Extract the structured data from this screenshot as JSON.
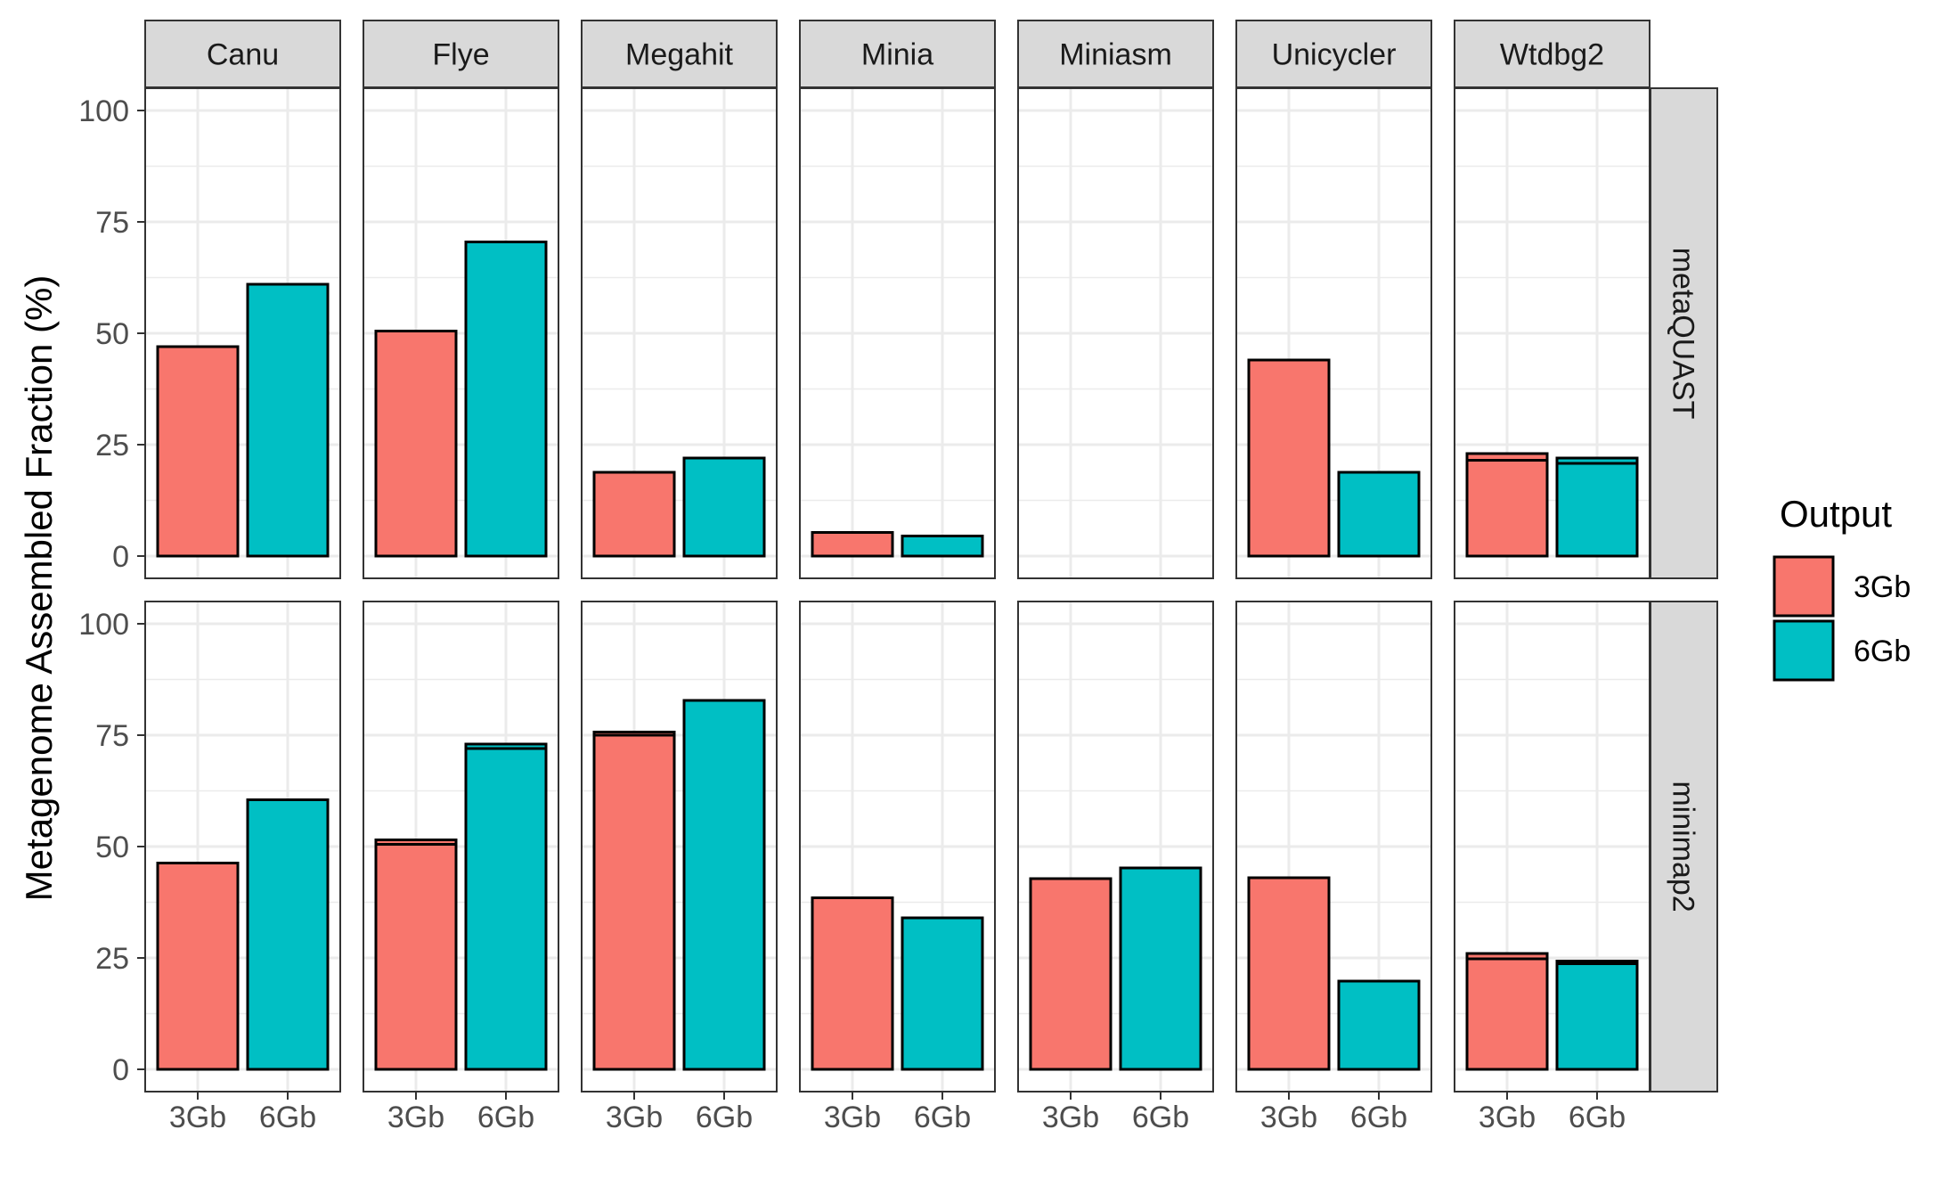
{
  "chart_data": {
    "type": "bar",
    "facet_columns": [
      "Canu",
      "Flye",
      "Megahit",
      "Minia",
      "Miniasm",
      "Unicycler",
      "Wtdbg2"
    ],
    "facet_rows": [
      "metaQUAST",
      "minimap2"
    ],
    "categories": [
      "3Gb",
      "6Gb"
    ],
    "ylabel": "Metagenome Assembled Fraction (%)",
    "xlabel": "",
    "ylim": [
      0,
      100
    ],
    "yticks": [
      0,
      25,
      50,
      75,
      100
    ],
    "grid": true,
    "legend": {
      "title": "Output",
      "position": "right",
      "entries": [
        "3Gb",
        "6Gb"
      ]
    },
    "colors": {
      "3Gb": "#F8766D",
      "6Gb": "#00BFC4",
      "strip": "#D9D9D9",
      "grid": "#EBEBEB"
    },
    "panels": [
      {
        "row": "metaQUAST",
        "col": "Canu",
        "values": {
          "3Gb": 47,
          "6Gb": 61
        }
      },
      {
        "row": "metaQUAST",
        "col": "Flye",
        "values": {
          "3Gb": 50.5,
          "6Gb": 70.5
        }
      },
      {
        "row": "metaQUAST",
        "col": "Megahit",
        "values": {
          "3Gb": 18.8,
          "6Gb": 22
        }
      },
      {
        "row": "metaQUAST",
        "col": "Minia",
        "values": {
          "3Gb": 5.3,
          "6Gb": 4.5
        }
      },
      {
        "row": "metaQUAST",
        "col": "Miniasm",
        "values": {
          "3Gb": null,
          "6Gb": null
        }
      },
      {
        "row": "metaQUAST",
        "col": "Unicycler",
        "values": {
          "3Gb": 44,
          "6Gb": 18.8
        }
      },
      {
        "row": "metaQUAST",
        "col": "Wtdbg2",
        "values": {
          "3Gb": 23,
          "6Gb": 22
        },
        "inner_lines": {
          "3Gb": 21.5,
          "6Gb": 20.8
        }
      },
      {
        "row": "minimap2",
        "col": "Canu",
        "values": {
          "3Gb": 46.3,
          "6Gb": 60.5
        }
      },
      {
        "row": "minimap2",
        "col": "Flye",
        "values": {
          "3Gb": 51.5,
          "6Gb": 73
        },
        "inner_lines": {
          "3Gb": 50.5,
          "6Gb": 72
        }
      },
      {
        "row": "minimap2",
        "col": "Megahit",
        "values": {
          "3Gb": 75.7,
          "6Gb": 82.8
        },
        "inner_lines": {
          "3Gb": 75,
          "6Gb": null
        }
      },
      {
        "row": "minimap2",
        "col": "Minia",
        "values": {
          "3Gb": 38.5,
          "6Gb": 34
        }
      },
      {
        "row": "minimap2",
        "col": "Miniasm",
        "values": {
          "3Gb": 42.8,
          "6Gb": 45.2
        }
      },
      {
        "row": "minimap2",
        "col": "Unicycler",
        "values": {
          "3Gb": 43,
          "6Gb": 19.8
        }
      },
      {
        "row": "minimap2",
        "col": "Wtdbg2",
        "values": {
          "3Gb": 26,
          "6Gb": 24.3
        },
        "inner_lines": {
          "3Gb": 24.8,
          "6Gb": 23.7
        }
      }
    ]
  }
}
